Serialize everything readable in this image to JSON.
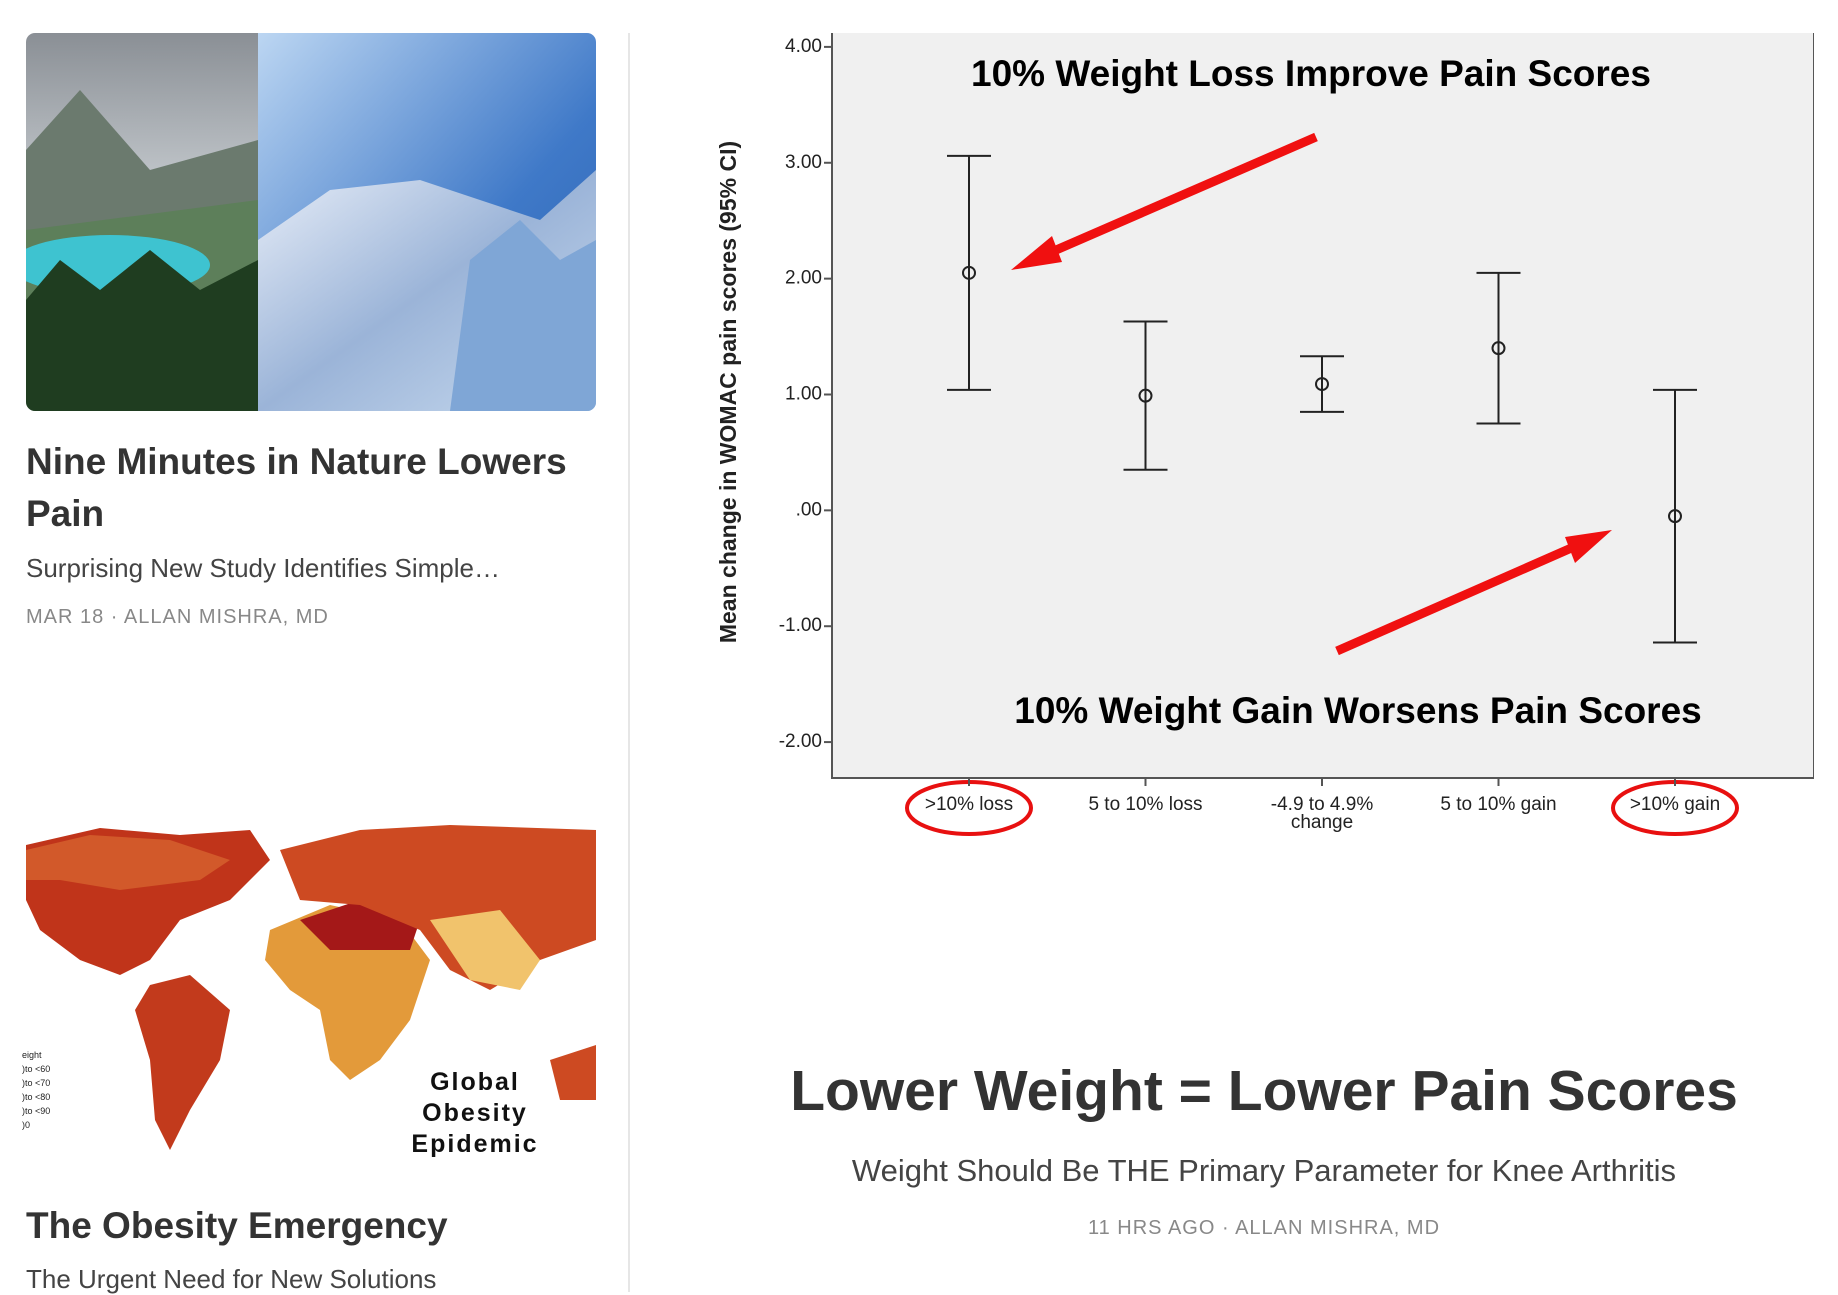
{
  "sidebar": {
    "articles": [
      {
        "title": "Nine Minutes in Nature Lowers Pain",
        "subtitle": "Surprising New Study Identifies Simple…",
        "date": "MAR 18",
        "author": "ALLAN MISHRA, MD"
      },
      {
        "title": "The Obesity Emergency",
        "subtitle": "The Urgent Need for New Solutions",
        "image_text": "Global Obesity Epidemic",
        "image_legend": [
          "eight",
          ")to <60",
          ")to <70",
          ")to <80",
          ")to <90",
          ")0"
        ]
      }
    ]
  },
  "featured": {
    "title": "Lower Weight = Lower Pain Scores",
    "subtitle": "Weight Should Be THE Primary Parameter for Knee Arthritis",
    "date": "11 HRS AGO",
    "author": "ALLAN MISHRA, MD"
  },
  "chart_data": {
    "type": "errorbar",
    "y_label": "Mean change in WOMAC pain scores (95% CI)",
    "annotations": [
      "10% Weight Loss Improve Pain Scores",
      "10% Weight Gain Worsens Pain Scores"
    ],
    "categories": [
      ">10% loss",
      "5 to 10% loss",
      "-4.9 to 4.9% change",
      "5 to 10% gain",
      ">10% gain"
    ],
    "values": [
      2.05,
      0.99,
      1.09,
      1.4,
      -0.05
    ],
    "errors": [
      1.01,
      0.64,
      0.24,
      0.65,
      1.09
    ],
    "color": "#222222",
    "ylim": [
      -2.31,
      4.12
    ],
    "yticks": [
      {
        "value": 4,
        "label": "4.00"
      },
      {
        "value": 3,
        "label": "3.00"
      },
      {
        "value": 2,
        "label": "2.00"
      },
      {
        "value": 1,
        "label": "1.00"
      },
      {
        "value": 0,
        "label": ".00"
      },
      {
        "value": -1,
        "label": "-1.00"
      },
      {
        "value": -2,
        "label": "-2.00"
      }
    ]
  }
}
